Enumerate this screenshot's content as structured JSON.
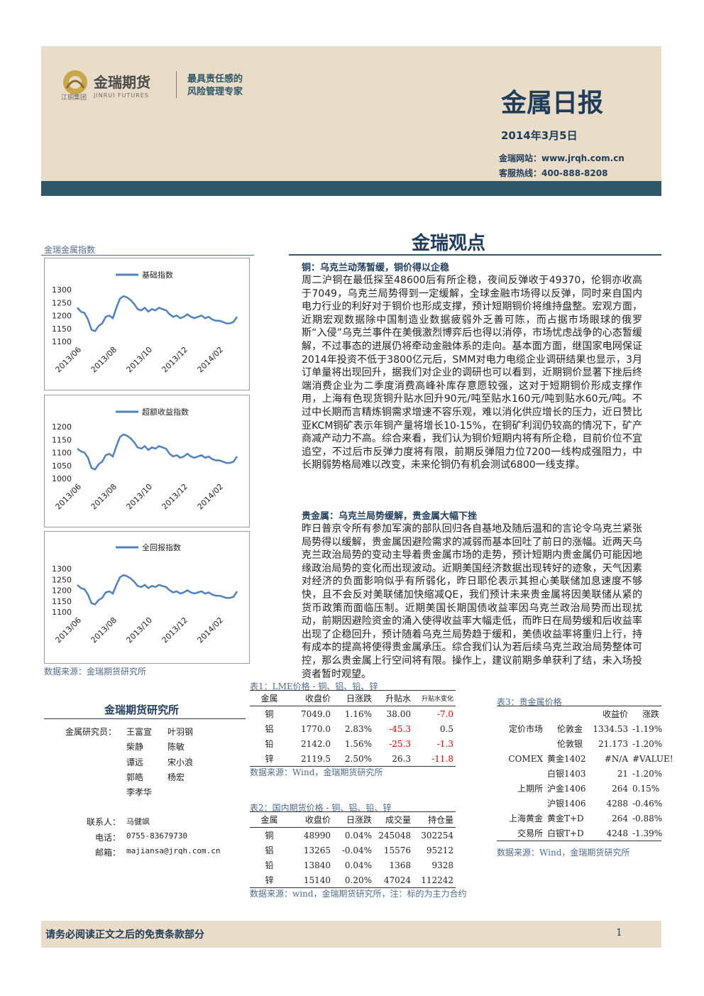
{
  "header": {
    "logo": "金瑞期货",
    "logo_sub": "江铜集团",
    "logo_en": "JINRUI FUTURES",
    "slogan": [
      "最具责任感的",
      "风险管理专家"
    ],
    "title": "金属日报",
    "date": "2014年3月5日",
    "website": "金瑞网站：www.jrqh.com.cn",
    "hotline": "客服热线：400-888-8208"
  },
  "section_title": "金瑞观点",
  "chart_panel": {
    "title": "金瑞金属指数",
    "source": "数据来源：金瑞期货研究所"
  },
  "chart_data": [
    {
      "type": "line",
      "categories": [
        "2013/06",
        null,
        null,
        null,
        null,
        null,
        null,
        null,
        null,
        null,
        "2013/08",
        null,
        null,
        null,
        null,
        null,
        null,
        null,
        null,
        null,
        "2013/10",
        null,
        null,
        null,
        null,
        null,
        null,
        null,
        null,
        null,
        "2013/12",
        null,
        null,
        null,
        null,
        null,
        null,
        null,
        null,
        null,
        "2014/02",
        null,
        null,
        null,
        null,
        null
      ],
      "series": [
        {
          "name": "基础指数",
          "color": "#4f81bd",
          "values": [
            1230,
            1215,
            1210,
            1185,
            1145,
            1140,
            1160,
            1170,
            1195,
            1200,
            1190,
            1230,
            1265,
            1275,
            1270,
            1260,
            1245,
            1225,
            1220,
            1230,
            1215,
            1225,
            1220,
            1230,
            1225,
            1220,
            1205,
            1195,
            1200,
            1190,
            1195,
            1205,
            1195,
            1190,
            1195,
            1200,
            1190,
            1195,
            1185,
            1180,
            1180,
            1175,
            1170,
            1170,
            1175,
            1195
          ]
        }
      ],
      "ylim": [
        1100,
        1300
      ],
      "yticks": [
        1100,
        1150,
        1200,
        1250,
        1300
      ],
      "legend": "top"
    },
    {
      "type": "line",
      "categories": [
        "2013/06",
        null,
        null,
        null,
        null,
        null,
        null,
        null,
        null,
        null,
        "2013/08",
        null,
        null,
        null,
        null,
        null,
        null,
        null,
        null,
        null,
        "2013/10",
        null,
        null,
        null,
        null,
        null,
        null,
        null,
        null,
        null,
        "2013/12",
        null,
        null,
        null,
        null,
        null,
        null,
        null,
        null,
        null,
        "2014/02",
        null,
        null,
        null,
        null,
        null
      ],
      "series": [
        {
          "name": "超额收益指数",
          "color": "#4f81bd",
          "values": [
            1115,
            1105,
            1100,
            1080,
            1040,
            1035,
            1055,
            1065,
            1090,
            1095,
            1085,
            1125,
            1160,
            1170,
            1165,
            1155,
            1140,
            1120,
            1115,
            1125,
            1110,
            1120,
            1115,
            1125,
            1120,
            1115,
            1095,
            1085,
            1090,
            1080,
            1085,
            1095,
            1085,
            1080,
            1085,
            1090,
            1080,
            1085,
            1075,
            1070,
            1070,
            1065,
            1060,
            1060,
            1065,
            1085
          ]
        }
      ],
      "ylim": [
        1000,
        1200
      ],
      "yticks": [
        1000,
        1050,
        1100,
        1150,
        1200
      ],
      "legend": "top"
    },
    {
      "type": "line",
      "categories": [
        "2013/06",
        null,
        null,
        null,
        null,
        null,
        null,
        null,
        null,
        null,
        "2013/08",
        null,
        null,
        null,
        null,
        null,
        null,
        null,
        null,
        null,
        "2013/10",
        null,
        null,
        null,
        null,
        null,
        null,
        null,
        null,
        null,
        "2013/12",
        null,
        null,
        null,
        null,
        null,
        null,
        null,
        null,
        null,
        "2014/02",
        null,
        null,
        null,
        null,
        null
      ],
      "series": [
        {
          "name": "全回报指数",
          "color": "#4f81bd",
          "values": [
            1225,
            1210,
            1205,
            1180,
            1140,
            1135,
            1155,
            1165,
            1190,
            1195,
            1185,
            1225,
            1260,
            1270,
            1265,
            1255,
            1240,
            1220,
            1215,
            1225,
            1210,
            1220,
            1215,
            1225,
            1220,
            1215,
            1200,
            1190,
            1195,
            1185,
            1190,
            1200,
            1190,
            1185,
            1190,
            1195,
            1185,
            1190,
            1180,
            1175,
            1175,
            1170,
            1165,
            1165,
            1170,
            1195
          ]
        }
      ],
      "ylim": [
        1100,
        1300
      ],
      "yticks": [
        1100,
        1150,
        1200,
        1250,
        1300
      ],
      "legend": "top"
    }
  ],
  "article": [
    {
      "heading": "铜：乌克兰动荡暂缓，铜价得以企稳",
      "text": "周二沪铜在最低探至48600后有所企稳，夜间反弹收于49370，伦铜亦收高于7049，乌克兰局势得到一定缓解，全球金融市场得以反弹，同时来自国内电力行业的利好对于铜价也形成支撑，预计短期铜价将维持盘整。宏观方面，近期宏观数据除中国制造业数据疲弱外乏善可陈，而占据市场眼球的俄罗斯“入侵”乌克兰事件在美俄激烈博弈后也得以消停，市场忧虑战争的心态暂缓解，不过事态的进展仍将牵动金融体系的走向。基本面方面，继国家电网保证2014年投资不低于3800亿元后，SMM对电力电缆企业调研结果也显示，3月订单量将出现回升，据我们对企业的调研也可以看到，近期铜价显著下挫后终端消费企业为二季度消费高峰补库存意愿较强，这对于短期铜价形成支撑作用，上海有色现货铜升贴水回升90元/吨至贴水160元/吨到贴水60元/吨。不过中长期而言精炼铜需求增速不容乐观，难以消化供应增长的压力，近日赞比亚KCM铜矿表示年铜产量将增长10-15%，在铜矿利润仍较高的情况下，矿产商减产动力不高。综合来看，我们认为铜价短期内将有所企稳，目前价位不宜追空，不过后市反弹力度将有限，前期反弹阻力位7200一线构成强阻力，中长期弱势格局难以改变，未来伦铜仍有机会测试6800一线支撑。"
    },
    {
      "heading": "贵金属：乌克兰局势缓解，贵金属大幅下挫",
      "text": "昨日普京令所有参加军演的部队回归各自基地及随后温和的言论令乌克兰紧张局势得以缓解，贵金属因避险需求的减弱而基本回吐了前日的涨幅。近两天乌克兰政治局势的变动主导着贵金属市场的走势，预计短期内贵金属仍可能因地缘政治局势的变化而出现波动。近期美国经济数据出现转好的迹象，天气因素对经济的负面影响似乎有所弱化，昨日耶伦表示其担心美联储加息速度不够快，且不会反对美联储加快缩减QE，我们预计未来贵金属将因美联储从紧的货币政策而面临压制。近期美国长期国债收益率因乌克兰政治局势而出现扰动，前期因避险资金的涌入使得收益率大幅走低，而昨日在局势缓和后收益率出现了企稳回升，预计随着乌克兰局势趋于缓和，美债收益率将重归上行，持有成本的提高将使得贵金属承压。综合我们认为若后续乌克兰政治局势整体可控，那么贵金属上行空间将有限。操作上，建议前期多单获利了结，未入场投资者暂时观望。"
    }
  ],
  "sidebar": {
    "title": "金瑞期货研究所",
    "researchers": {
      "label": "金属研究员：",
      "names": [
        [
          "王富宣",
          "叶羽钢"
        ],
        [
          "柴静",
          "陈敏"
        ],
        [
          "谭远",
          "宋小浪"
        ],
        [
          "郭皓",
          "杨宏"
        ],
        [
          "李孝华"
        ]
      ]
    },
    "contacts": [
      {
        "label": "联系人：",
        "value": "马健飒"
      },
      {
        "label": "电话：",
        "value": "0755-83679730"
      },
      {
        "label": "邮箱：",
        "value": "majiansa@jrqh.com.cn"
      }
    ]
  },
  "table1": {
    "title": "表1：LME价格 - 铜、铝、铅、锌",
    "header": [
      "金属",
      "收盘价",
      "日涨跌",
      "升贴水",
      "升贴水变化"
    ],
    "rows": [
      [
        "铜",
        "7049.0",
        "1.16%",
        "38.00",
        "-7.0"
      ],
      [
        "铝",
        "1770.0",
        "2.83%",
        "-45.3",
        "0.5"
      ],
      [
        "铅",
        "2142.0",
        "1.56%",
        "-25.3",
        "-1.3"
      ],
      [
        "锌",
        "2119.5",
        "2.50%",
        "26.3",
        "-11.8"
      ]
    ],
    "source": "数据来源：Wind，金瑞期货研究所"
  },
  "table2": {
    "title": "表2：国内期货价格 - 铜、铝、铅、锌",
    "header": [
      "金属",
      "收盘价",
      "日涨跌",
      "成交量",
      "持仓量"
    ],
    "rows": [
      [
        "铜",
        "48990",
        "0.04%",
        "245048",
        "302254"
      ],
      [
        "铝",
        "13265",
        "-0.04%",
        "15576",
        "95212"
      ],
      [
        "铅",
        "13840",
        "0.04%",
        "1368",
        "9328"
      ],
      [
        "锌",
        "15140",
        "0.20%",
        "47024",
        "112242"
      ]
    ],
    "source": "数据来源：wind，金瑞期货研究所，注：标的为主力合约"
  },
  "table3": {
    "title": "表3：贵金属价格",
    "header": [
      "收益价",
      "涨跌"
    ],
    "rows": [
      {
        "market": "定价市场",
        "name": "伦敦金",
        "price": "1334.53",
        "change": "-1.19%"
      },
      {
        "name": "伦敦银",
        "price": "21.173",
        "change": "-1.20%"
      },
      {
        "market": "COMEX",
        "name": "黄金1402",
        "price": "#N/A",
        "change": "#VALUE!"
      },
      {
        "name": "白银1403",
        "price": "21",
        "change": "-1.20%"
      },
      {
        "market": "上期所",
        "name": "沪金1406",
        "price": "264",
        "change": "0.15%"
      },
      {
        "name": "沪银1406",
        "price": "4288",
        "change": "-0.46%"
      },
      {
        "market": "上海黄金",
        "name": "黄金T+D",
        "price": "264",
        "change": "-0.88%"
      },
      {
        "market": "交易所",
        "name": "白银T+D",
        "price": "4248",
        "change": "-1.39%"
      }
    ],
    "source": "数据来源：Wind，金瑞期货研究所"
  },
  "footer": {
    "disclaimer": "请务必阅读正文之后的免责条款部分",
    "page": "1"
  }
}
